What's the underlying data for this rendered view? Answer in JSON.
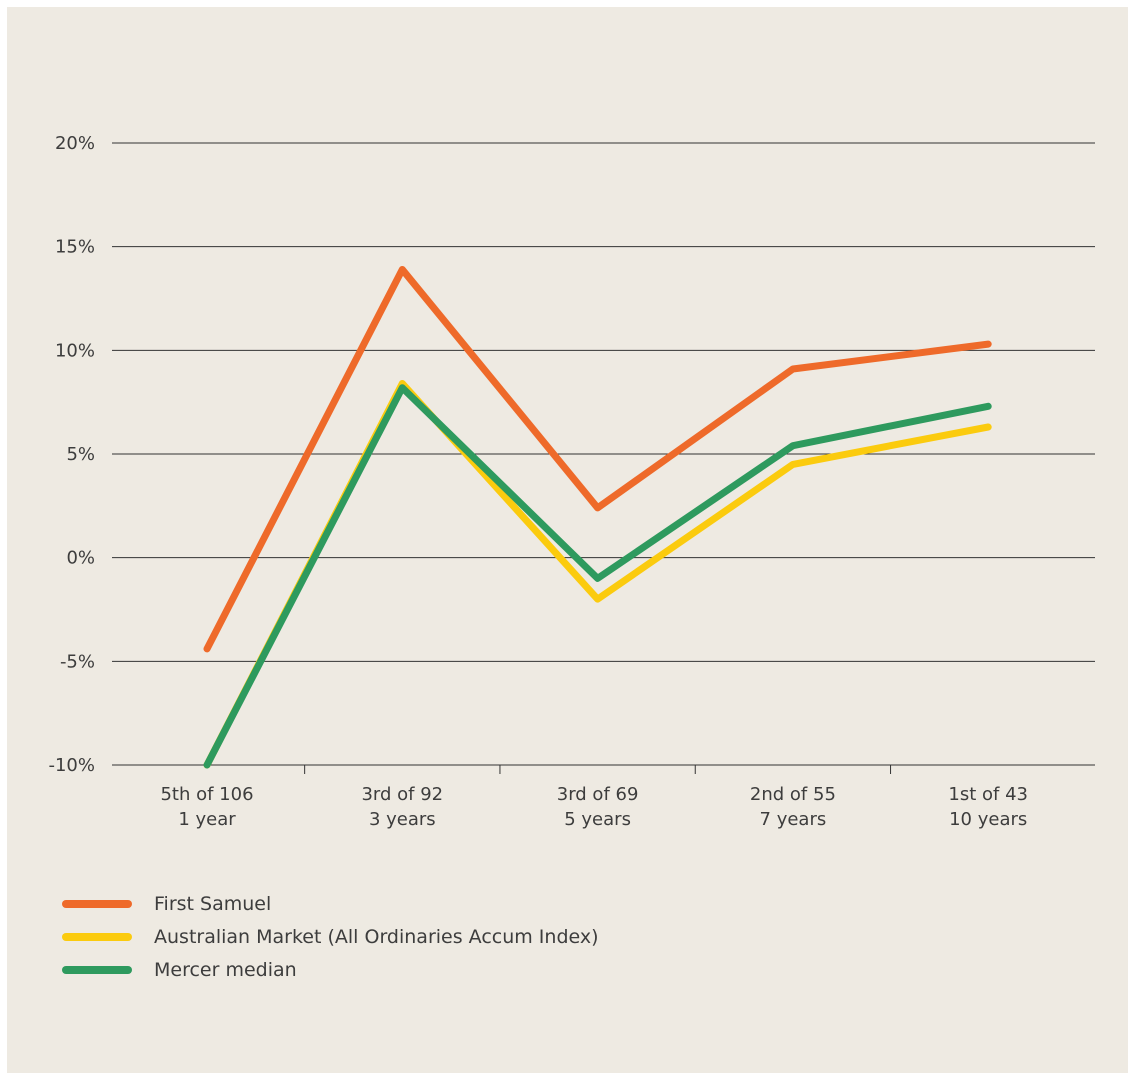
{
  "chart_data": {
    "type": "line",
    "categories": [
      {
        "line1": "5th of 106",
        "line2": "1 year"
      },
      {
        "line1": "3rd of 92",
        "line2": "3 years"
      },
      {
        "line1": "3rd of 69",
        "line2": "5 years"
      },
      {
        "line1": "2nd of 55",
        "line2": "7 years"
      },
      {
        "line1": "1st of 43",
        "line2": "10 years"
      }
    ],
    "y_ticks": [
      "20%",
      "15%",
      "10%",
      "5%",
      "0%",
      "-5%",
      "-10%"
    ],
    "y_tick_values": [
      20,
      15,
      10,
      5,
      0,
      -5,
      -10
    ],
    "ylim": [
      -10,
      20
    ],
    "grid": true,
    "legend_position": "bottom-left",
    "series": [
      {
        "name": "First Samuel",
        "color": "#EE6A2A",
        "values": [
          -4.4,
          13.9,
          2.4,
          9.1,
          10.3
        ]
      },
      {
        "name": "Australian Market (All Ordinaries Accum Index)",
        "color": "#FBCB0E",
        "values": [
          -10.3,
          8.4,
          -2.0,
          4.5,
          6.3
        ]
      },
      {
        "name": "Mercer median",
        "color": "#2E9A5E",
        "values": [
          -10.0,
          8.2,
          -1.0,
          5.4,
          7.3
        ]
      }
    ]
  }
}
